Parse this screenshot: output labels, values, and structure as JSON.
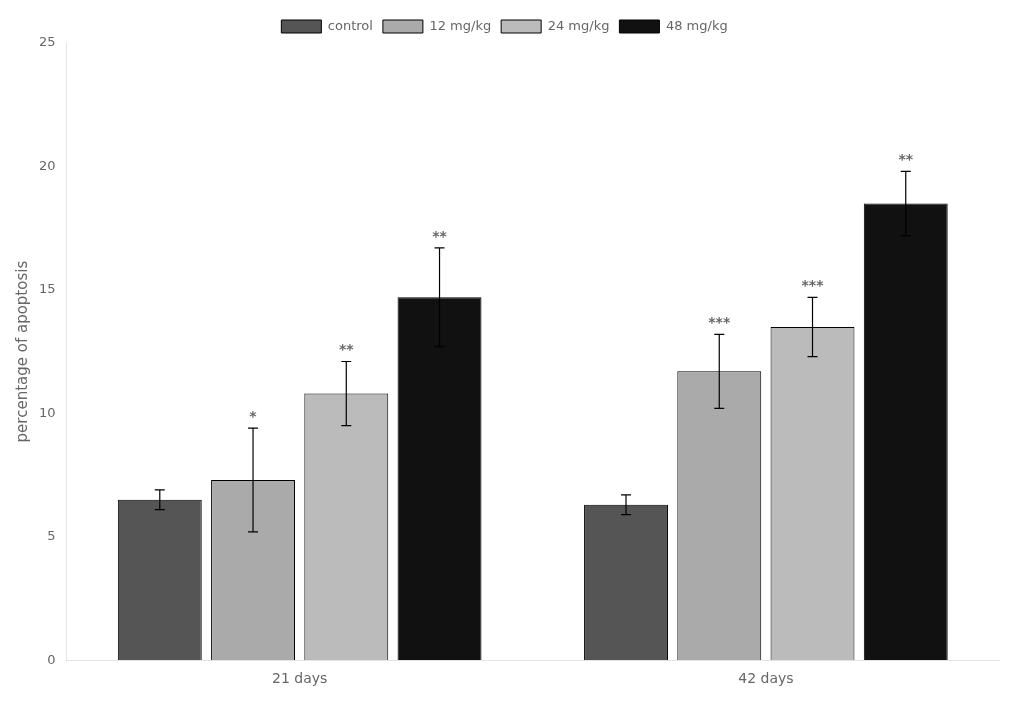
{
  "chart_data": {
    "type": "bar",
    "categories": [
      "21 days",
      "42 days"
    ],
    "series": [
      {
        "name": "control",
        "color": "#555555",
        "values": [
          6.5,
          6.3
        ],
        "errors": [
          0.4,
          0.4
        ],
        "significance": [
          null,
          null
        ]
      },
      {
        "name": "12 mg/kg",
        "color": "#aaaaaa",
        "values": [
          7.3,
          11.7
        ],
        "errors": [
          2.1,
          1.5
        ],
        "significance": [
          "*",
          "***"
        ]
      },
      {
        "name": "24 mg/kg",
        "color": "#bbbbbb",
        "values": [
          10.8,
          13.5
        ],
        "errors": [
          1.3,
          1.2
        ],
        "significance": [
          "**",
          "***"
        ]
      },
      {
        "name": "48 mg/kg",
        "color": "#111111",
        "values": [
          14.7,
          18.5
        ],
        "errors": [
          2.0,
          1.3
        ],
        "significance": [
          "**",
          "**"
        ]
      }
    ],
    "ylabel": "percentage of apoptosis",
    "ylim": [
      0,
      25
    ],
    "yticks": [
      0,
      5,
      10,
      15,
      20,
      25
    ],
    "grid": false,
    "legend": "top"
  }
}
